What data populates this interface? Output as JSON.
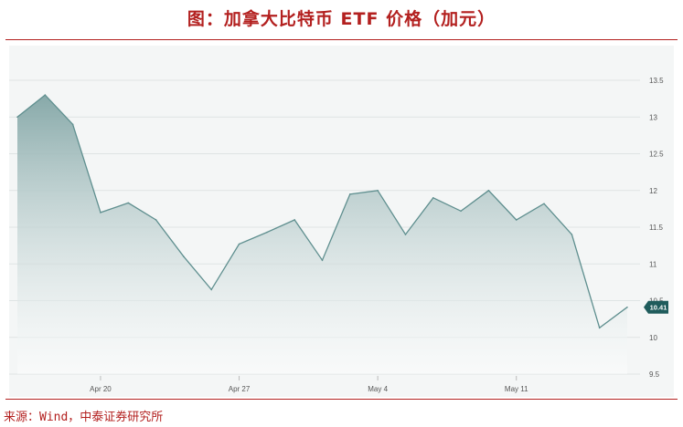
{
  "header": {
    "title": "图：加拿大比特币 ETF 价格（加元）"
  },
  "footer": {
    "source": "来源：Wind，中泰证券研究所"
  },
  "colors": {
    "title": "#b3201f",
    "line": "#5f8f8f",
    "area_top": "#87a9a9",
    "badge": "#1f5c5c"
  },
  "chart_data": {
    "type": "area",
    "title": "图：加拿大比特币 ETF 价格（加元）",
    "xlabel": "",
    "ylabel": "",
    "ylim": [
      9.5,
      13.5
    ],
    "yticks": [
      "13.5",
      "13",
      "12.5",
      "12",
      "11.5",
      "11",
      "10.5",
      "10",
      "9.5"
    ],
    "ytick_values": [
      13.5,
      13,
      12.5,
      12,
      11.5,
      11,
      10.5,
      10,
      9.5
    ],
    "xticks": [
      "Apr 20",
      "Apr 27",
      "May 4",
      "May 11"
    ],
    "xtick_positions": [
      3,
      8,
      13,
      18
    ],
    "x": [
      0,
      1,
      2,
      3,
      4,
      5,
      6,
      7,
      8,
      9,
      10,
      11,
      12,
      13,
      14,
      15,
      16,
      17,
      18,
      19,
      20,
      21,
      22
    ],
    "values": [
      13.0,
      13.3,
      12.9,
      11.7,
      11.83,
      11.6,
      11.1,
      10.65,
      11.27,
      11.43,
      11.6,
      11.05,
      11.95,
      12.0,
      11.4,
      11.9,
      11.72,
      12.0,
      11.6,
      11.82,
      11.4,
      10.13,
      10.41
    ],
    "last_value_label": "10.41",
    "grid": true,
    "legend": "none"
  }
}
